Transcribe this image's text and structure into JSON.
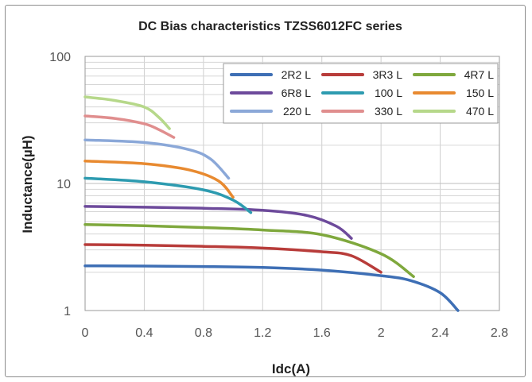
{
  "chart_data": {
    "type": "line",
    "title": "DC Bias characteristics TZSS6012FC series",
    "xlabel": "Idc(A)",
    "ylabel": "Inductance(µH)",
    "xlim": [
      0,
      2.8
    ],
    "ylim": [
      1,
      100
    ],
    "yscale": "log",
    "x_ticks": [
      "0",
      "0.4",
      "0.8",
      "1.2",
      "1.6",
      "2",
      "2.4",
      "2.8"
    ],
    "y_ticks": [
      "1",
      "10",
      "100"
    ],
    "grid": true,
    "legend_position": "top-right",
    "series": [
      {
        "name": "2R2 L",
        "color": "#3e6fb5",
        "points": [
          [
            0,
            2.25
          ],
          [
            0.4,
            2.24
          ],
          [
            0.8,
            2.22
          ],
          [
            1.2,
            2.18
          ],
          [
            1.6,
            2.08
          ],
          [
            2.0,
            1.88
          ],
          [
            2.2,
            1.72
          ],
          [
            2.4,
            1.38
          ],
          [
            2.52,
            1.0
          ]
        ]
      },
      {
        "name": "3R3 L",
        "color": "#b83c3a",
        "points": [
          [
            0,
            3.3
          ],
          [
            0.4,
            3.27
          ],
          [
            0.8,
            3.2
          ],
          [
            1.2,
            3.1
          ],
          [
            1.6,
            2.9
          ],
          [
            1.8,
            2.7
          ],
          [
            2.0,
            2.0
          ]
        ]
      },
      {
        "name": "4R7 L",
        "color": "#7fa83d",
        "points": [
          [
            0,
            4.75
          ],
          [
            0.4,
            4.65
          ],
          [
            0.8,
            4.5
          ],
          [
            1.2,
            4.3
          ],
          [
            1.6,
            3.95
          ],
          [
            2.0,
            2.8
          ],
          [
            2.22,
            1.85
          ]
        ]
      },
      {
        "name": "6R8 L",
        "color": "#6d4a9b",
        "points": [
          [
            0,
            6.6
          ],
          [
            0.4,
            6.5
          ],
          [
            0.8,
            6.38
          ],
          [
            1.2,
            6.15
          ],
          [
            1.5,
            5.6
          ],
          [
            1.7,
            4.6
          ],
          [
            1.8,
            3.7
          ]
        ]
      },
      {
        "name": "100 L",
        "color": "#2d9bb0",
        "points": [
          [
            0,
            11.0
          ],
          [
            0.4,
            10.3
          ],
          [
            0.8,
            8.9
          ],
          [
            1.0,
            7.4
          ],
          [
            1.12,
            5.9
          ]
        ]
      },
      {
        "name": "150 L",
        "color": "#e88a30",
        "points": [
          [
            0,
            15.0
          ],
          [
            0.4,
            14.3
          ],
          [
            0.7,
            12.8
          ],
          [
            0.9,
            10.5
          ],
          [
            1.0,
            7.8
          ]
        ]
      },
      {
        "name": "220 L",
        "color": "#8ba8d8",
        "points": [
          [
            0,
            22.0
          ],
          [
            0.4,
            21.0
          ],
          [
            0.7,
            18.5
          ],
          [
            0.85,
            15.5
          ],
          [
            0.97,
            11.0
          ]
        ]
      },
      {
        "name": "330 L",
        "color": "#e08e8e",
        "points": [
          [
            0,
            34.0
          ],
          [
            0.2,
            32.5
          ],
          [
            0.4,
            29.5
          ],
          [
            0.5,
            26.5
          ],
          [
            0.6,
            23.0
          ]
        ]
      },
      {
        "name": "470 L",
        "color": "#b6d88a",
        "points": [
          [
            0,
            48.0
          ],
          [
            0.2,
            45.0
          ],
          [
            0.4,
            40.0
          ],
          [
            0.5,
            33.0
          ],
          [
            0.57,
            27.0
          ]
        ]
      }
    ]
  }
}
